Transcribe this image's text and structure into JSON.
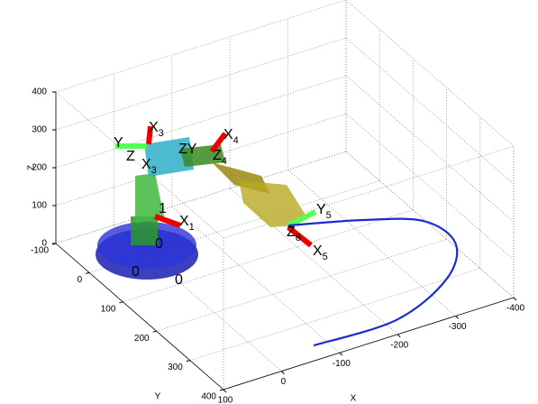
{
  "chart_data": {
    "type": "line3d",
    "xlabel": "X",
    "ylabel": "Y",
    "zlabel": "Z",
    "xlim": [
      -400,
      100
    ],
    "ylim": [
      -100,
      400
    ],
    "zlim": [
      0,
      400
    ],
    "xticks": [
      -400,
      -300,
      -200,
      -100,
      0,
      100
    ],
    "yticks": [
      -100,
      0,
      100,
      200,
      300,
      400
    ],
    "zticks": [
      0,
      100,
      200,
      300,
      400
    ],
    "grid": true,
    "series": [
      {
        "color": "#1a2bd6",
        "x": [
          -220,
          -319,
          -397,
          -405,
          -341,
          -219,
          -78
        ],
        "y": [
          40,
          84,
          136,
          218,
          301,
          363,
          361
        ],
        "z": [
          0,
          0,
          0,
          0,
          0,
          0,
          0
        ]
      }
    ],
    "annotations": [
      {
        "text": "X",
        "sub": "3"
      },
      {
        "text": "Y"
      },
      {
        "text": "Z"
      },
      {
        "text": "X",
        "sub": "3"
      },
      {
        "text": "ZY"
      },
      {
        "text": "X",
        "sub": "4"
      },
      {
        "text": "Z",
        "sub": "4"
      },
      {
        "text": "1"
      },
      {
        "text": "X",
        "sub": "1"
      },
      {
        "text": "0"
      },
      {
        "text": "0"
      },
      {
        "text": "0"
      },
      {
        "text": "Y",
        "sub": "5"
      },
      {
        "text": "Z",
        "sub": "6"
      },
      {
        "text": "X",
        "sub": "5"
      }
    ]
  }
}
